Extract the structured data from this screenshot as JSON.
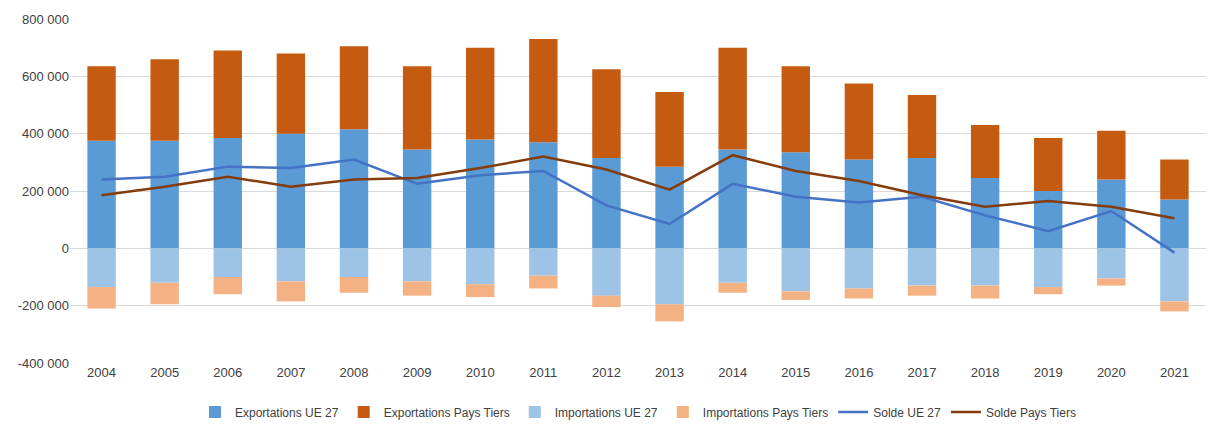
{
  "chart_data": {
    "type": "bar",
    "stacked": true,
    "grid": true,
    "legend": "bottom",
    "categories": [
      "2004",
      "2005",
      "2006",
      "2007",
      "2008",
      "2009",
      "2010",
      "2011",
      "2012",
      "2013",
      "2014",
      "2015",
      "2016",
      "2017",
      "2018",
      "2019",
      "2020",
      "2021"
    ],
    "ylim": [
      -400000,
      800000
    ],
    "yticks": [
      {
        "value": -400000,
        "label": "-400 000"
      },
      {
        "value": -200000,
        "label": "-200 000"
      },
      0,
      {
        "value": 200000,
        "label": "200 000"
      },
      {
        "value": 400000,
        "label": "400 000"
      },
      {
        "value": 600000,
        "label": "600 000"
      },
      {
        "value": 800000,
        "label": "800 000"
      }
    ],
    "series": [
      {
        "name": "Exportations UE 27",
        "type": "bar",
        "color": "#5b9bd5",
        "values": [
          375000,
          375000,
          385000,
          400000,
          415000,
          345000,
          380000,
          370000,
          315000,
          285000,
          345000,
          335000,
          310000,
          315000,
          245000,
          200000,
          240000,
          170000
        ]
      },
      {
        "name": "Exportations Pays Tiers",
        "type": "bar",
        "color": "#c55a11",
        "values": [
          260000,
          285000,
          305000,
          280000,
          290000,
          290000,
          320000,
          360000,
          310000,
          260000,
          355000,
          300000,
          265000,
          220000,
          185000,
          185000,
          170000,
          140000
        ]
      },
      {
        "name": "Importations UE 27",
        "type": "bar",
        "color": "#9dc3e6",
        "values": [
          -135000,
          -120000,
          -100000,
          -115000,
          -100000,
          -115000,
          -125000,
          -95000,
          -165000,
          -195000,
          -120000,
          -150000,
          -140000,
          -130000,
          -130000,
          -135000,
          -105000,
          -185000
        ]
      },
      {
        "name": "Importations Pays Tiers",
        "type": "bar",
        "color": "#f4b183",
        "values": [
          -75000,
          -75000,
          -60000,
          -70000,
          -55000,
          -50000,
          -45000,
          -45000,
          -40000,
          -60000,
          -35000,
          -30000,
          -35000,
          -35000,
          -45000,
          -25000,
          -25000,
          -35000
        ]
      },
      {
        "name": "Solde UE 27",
        "type": "line",
        "color": "#4472c4",
        "values": [
          240000,
          250000,
          285000,
          280000,
          310000,
          225000,
          255000,
          270000,
          150000,
          85000,
          225000,
          180000,
          160000,
          180000,
          115000,
          60000,
          130000,
          -15000
        ]
      },
      {
        "name": "Solde Pays Tiers",
        "type": "line",
        "color": "#843c0c",
        "values": [
          185000,
          215000,
          250000,
          215000,
          240000,
          245000,
          280000,
          320000,
          275000,
          205000,
          325000,
          270000,
          235000,
          185000,
          145000,
          165000,
          145000,
          105000
        ]
      }
    ]
  }
}
